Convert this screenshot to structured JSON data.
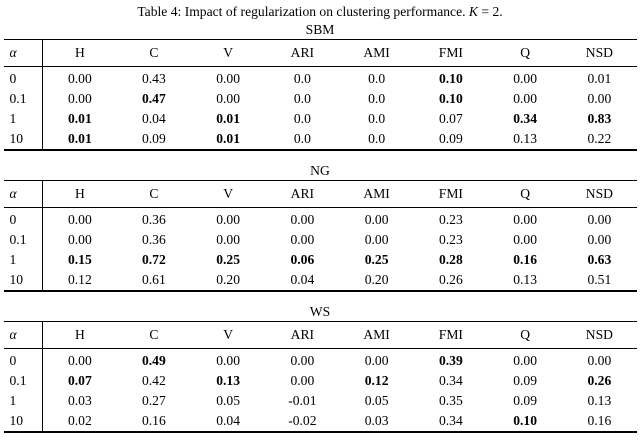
{
  "page": {
    "title": {
      "prefix": "Table 4: Impact of regularization on clustering performance.",
      "math_var": "K",
      "math_rest": "= 2."
    }
  },
  "columns": [
    "α",
    "H",
    "C",
    "V",
    "ARI",
    "AMI",
    "FMI",
    "Q",
    "NSD"
  ],
  "chart_data": {
    "type": "table",
    "note": "Three sub-tables of clustering metrics vs regularization strength alpha"
  },
  "tables": [
    {
      "caption": "SBM",
      "rows": [
        {
          "alpha": "0",
          "values": [
            "0.00",
            "0.43",
            "0.00",
            "0.0",
            "0.0",
            "0.10",
            "0.00",
            "0.01"
          ],
          "bold": [
            false,
            false,
            false,
            false,
            false,
            true,
            false,
            false
          ]
        },
        {
          "alpha": "0.1",
          "values": [
            "0.00",
            "0.47",
            "0.00",
            "0.0",
            "0.0",
            "0.10",
            "0.00",
            "0.00"
          ],
          "bold": [
            false,
            true,
            false,
            false,
            false,
            true,
            false,
            false
          ]
        },
        {
          "alpha": "1",
          "values": [
            "0.01",
            "0.04",
            "0.01",
            "0.0",
            "0.0",
            "0.07",
            "0.34",
            "0.83"
          ],
          "bold": [
            true,
            false,
            true,
            false,
            false,
            false,
            true,
            true
          ]
        },
        {
          "alpha": "10",
          "values": [
            "0.01",
            "0.09",
            "0.01",
            "0.0",
            "0.0",
            "0.09",
            "0.13",
            "0.22"
          ],
          "bold": [
            true,
            false,
            true,
            false,
            false,
            false,
            false,
            false
          ]
        }
      ]
    },
    {
      "caption": "NG",
      "rows": [
        {
          "alpha": "0",
          "values": [
            "0.00",
            "0.36",
            "0.00",
            "0.00",
            "0.00",
            "0.23",
            "0.00",
            "0.00"
          ],
          "bold": [
            false,
            false,
            false,
            false,
            false,
            false,
            false,
            false
          ]
        },
        {
          "alpha": "0.1",
          "values": [
            "0.00",
            "0.36",
            "0.00",
            "0.00",
            "0.00",
            "0.23",
            "0.00",
            "0.00"
          ],
          "bold": [
            false,
            false,
            false,
            false,
            false,
            false,
            false,
            false
          ]
        },
        {
          "alpha": "1",
          "values": [
            "0.15",
            "0.72",
            "0.25",
            "0.06",
            "0.25",
            "0.28",
            "0.16",
            "0.63"
          ],
          "bold": [
            true,
            true,
            true,
            true,
            true,
            true,
            true,
            true
          ]
        },
        {
          "alpha": "10",
          "values": [
            "0.12",
            "0.61",
            "0.20",
            "0.04",
            "0.20",
            "0.26",
            "0.13",
            "0.51"
          ],
          "bold": [
            false,
            false,
            false,
            false,
            false,
            false,
            false,
            false
          ]
        }
      ]
    },
    {
      "caption": "WS",
      "rows": [
        {
          "alpha": "0",
          "values": [
            "0.00",
            "0.49",
            "0.00",
            "0.00",
            "0.00",
            "0.39",
            "0.00",
            "0.00"
          ],
          "bold": [
            false,
            true,
            false,
            false,
            false,
            true,
            false,
            false
          ]
        },
        {
          "alpha": "0.1",
          "values": [
            "0.07",
            "0.42",
            "0.13",
            "0.00",
            "0.12",
            "0.34",
            "0.09",
            "0.26"
          ],
          "bold": [
            true,
            false,
            true,
            false,
            true,
            false,
            false,
            true
          ]
        },
        {
          "alpha": "1",
          "values": [
            "0.03",
            "0.27",
            "0.05",
            "-0.01",
            "0.05",
            "0.35",
            "0.09",
            "0.13"
          ],
          "bold": [
            false,
            false,
            false,
            false,
            false,
            false,
            false,
            false
          ]
        },
        {
          "alpha": "10",
          "values": [
            "0.02",
            "0.16",
            "0.04",
            "-0.02",
            "0.03",
            "0.34",
            "0.10",
            "0.16"
          ],
          "bold": [
            false,
            false,
            false,
            false,
            false,
            false,
            true,
            false
          ]
        }
      ]
    }
  ]
}
